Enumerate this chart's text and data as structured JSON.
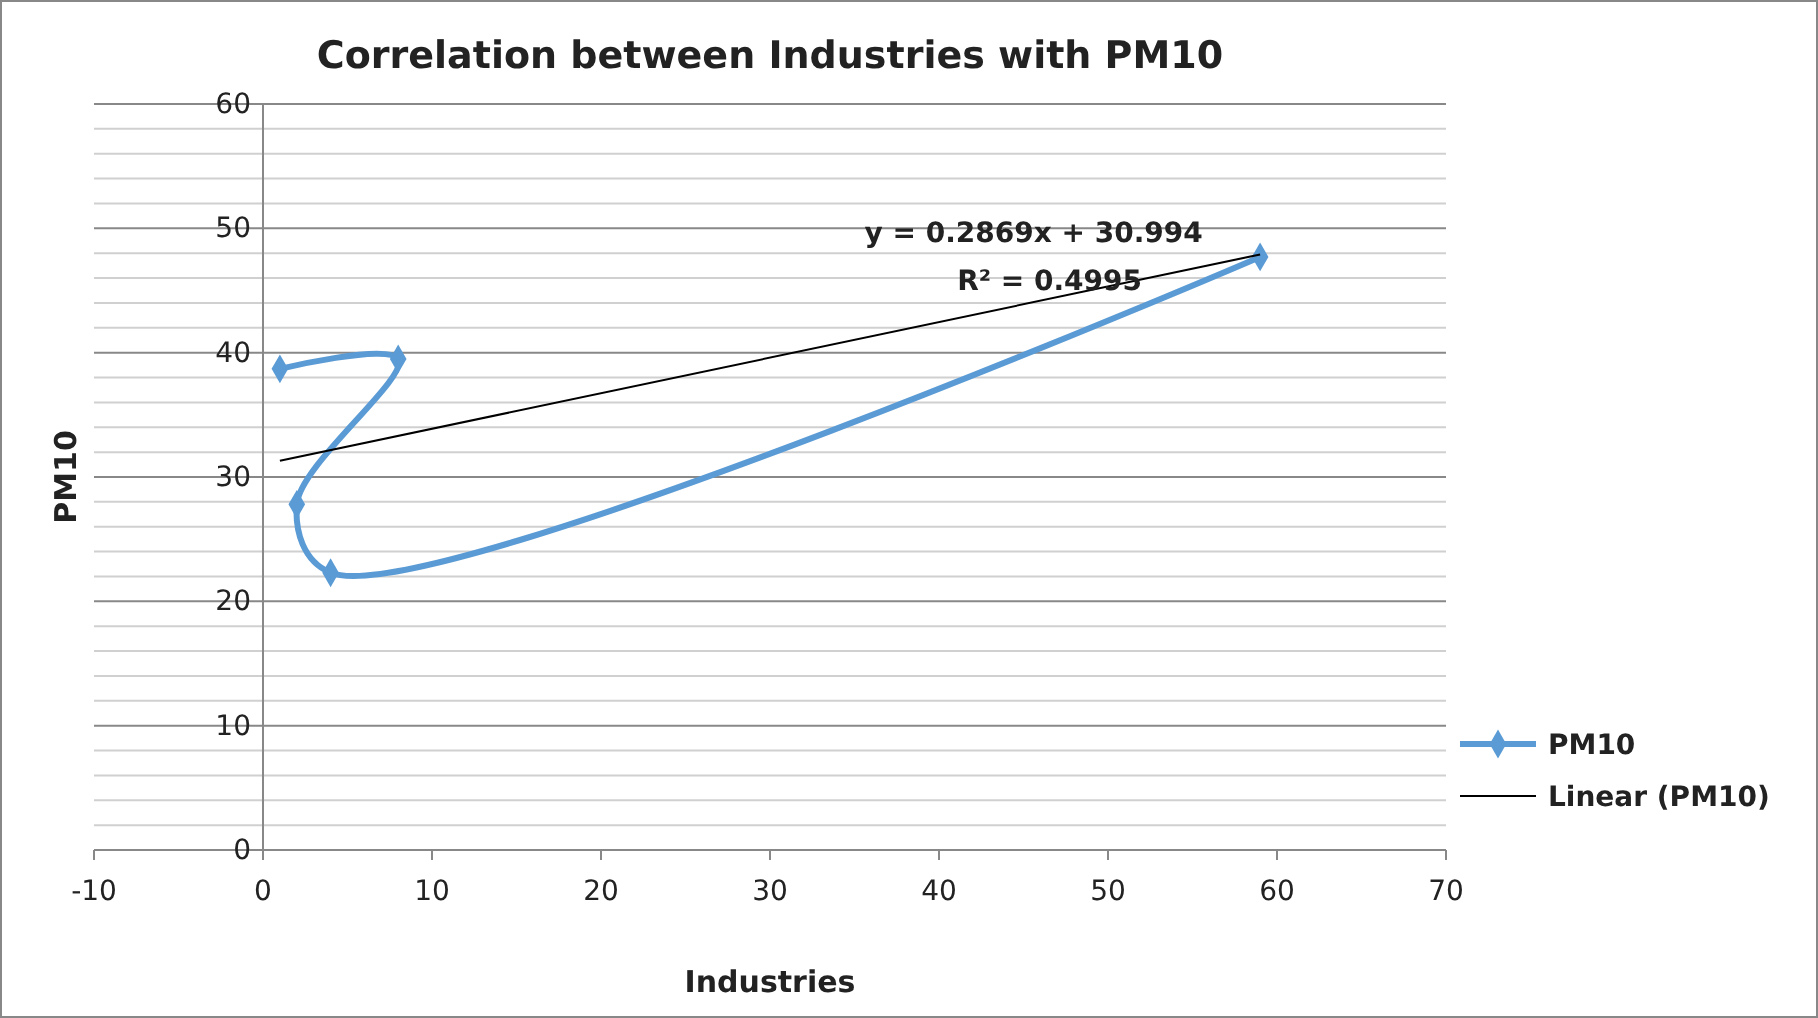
{
  "chart_data": {
    "type": "line",
    "title": "Correlation between Industries with PM10",
    "xlabel": "Industries",
    "ylabel": "PM10",
    "xlim": [
      -10,
      70
    ],
    "xticks": [
      -10,
      0,
      10,
      20,
      30,
      40,
      50,
      60,
      70
    ],
    "ylim": [
      0,
      60
    ],
    "yticks": [
      0,
      {
        "value": 2,
        "label": null
      },
      {
        "value": 4,
        "label": null
      },
      {
        "value": 6,
        "label": null
      },
      {
        "value": 8,
        "label": null
      },
      10,
      {
        "value": 12,
        "label": null
      },
      {
        "value": 14,
        "label": null
      },
      {
        "value": 16,
        "label": null
      },
      {
        "value": 18,
        "label": null
      },
      20,
      {
        "value": 22,
        "label": null
      },
      {
        "value": 24,
        "label": null
      },
      {
        "value": 26,
        "label": null
      },
      {
        "value": 28,
        "label": null
      },
      30,
      {
        "value": 32,
        "label": null
      },
      {
        "value": 34,
        "label": null
      },
      {
        "value": 36,
        "label": null
      },
      {
        "value": 38,
        "label": null
      },
      40,
      {
        "value": 42,
        "label": null
      },
      {
        "value": 44,
        "label": null
      },
      {
        "value": 46,
        "label": null
      },
      {
        "value": 48,
        "label": null
      },
      50,
      {
        "value": 52,
        "label": null
      },
      {
        "value": 54,
        "label": null
      },
      {
        "value": 56,
        "label": null
      },
      {
        "value": 58,
        "label": null
      },
      60
    ],
    "grid": "y",
    "legend": "right",
    "series": [
      {
        "name": "PM10",
        "color": "#5b9bd5",
        "marker": "diamond",
        "x": [
          1,
          8,
          2,
          4,
          59
        ],
        "values": [
          38.7,
          39.5,
          27.8,
          22.3,
          47.7
        ]
      },
      {
        "name": "Linear (PM10)",
        "color": "#000000",
        "marker": "none",
        "x": [
          1,
          59
        ],
        "values": [
          31.3,
          47.9
        ]
      }
    ],
    "annotations": [
      "y = 0.2869x + 30.994",
      "R² = 0.4995"
    ]
  }
}
